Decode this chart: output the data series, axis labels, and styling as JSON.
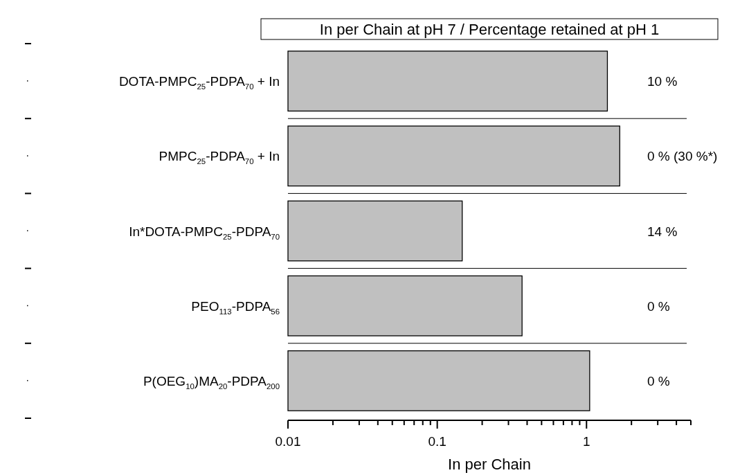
{
  "chart_data": {
    "type": "bar",
    "orientation": "horizontal",
    "title": "In per Chain at pH 7 /  Percentage retained at pH 1",
    "xlabel": "In per Chain",
    "categories": [
      "DOTA-PMPC$_{25}$-PDPA$_{70}$ + In",
      "PMPC$_{25}$-PDPA$_{70}$ + In",
      "In*DOTA-PMPC$_{25}$-PDPA$_{70}$",
      "PEO$_{113}$-PDPA$_{56}$",
      "P(OEG$_{10}$)MA$_{20}$-PDPA$_{200}$"
    ],
    "values": [
      1.38,
      1.67,
      0.147,
      0.37,
      1.05
    ],
    "color": "#c0c0c0",
    "log": "x",
    "xlim": [
      0.01,
      5
    ],
    "xticks": [
      0.01,
      {
        "value": 0.02,
        "label": null
      },
      {
        "value": 0.03,
        "label": null
      },
      {
        "value": 0.04,
        "label": null
      },
      {
        "value": 0.05,
        "label": null
      },
      {
        "value": 0.06,
        "label": null
      },
      {
        "value": 0.07,
        "label": null
      },
      {
        "value": 0.08,
        "label": null
      },
      {
        "value": 0.09,
        "label": null
      },
      0.1,
      {
        "value": 0.2,
        "label": null
      },
      {
        "value": 0.3,
        "label": null
      },
      {
        "value": 0.4,
        "label": null
      },
      {
        "value": 0.5,
        "label": null
      },
      {
        "value": 0.6,
        "label": null
      },
      {
        "value": 0.7,
        "label": null
      },
      {
        "value": 0.8,
        "label": null
      },
      {
        "value": 0.9,
        "label": null
      },
      1,
      {
        "value": 2,
        "label": null
      },
      {
        "value": 3,
        "label": null
      },
      {
        "value": 4,
        "label": null
      },
      {
        "value": 5,
        "label": null
      }
    ],
    "grid": "y",
    "annotations": [
      "10 %",
      "0 % (30 %*)",
      "14 %",
      "0 %",
      "0 %"
    ]
  }
}
